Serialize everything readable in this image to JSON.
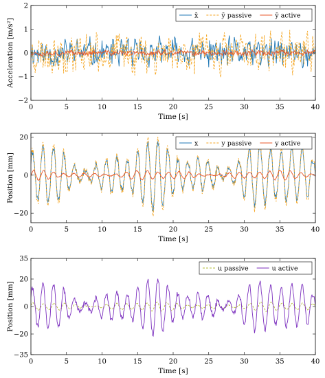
{
  "colors": {
    "x": "#1f77b4",
    "y_passive": "#f5a623",
    "y_active": "#e8572a",
    "u_passive": "#b5bd3a",
    "u_active": "#7b2fbe",
    "frame": "#000000",
    "grid": "none"
  },
  "chart_data": [
    {
      "type": "line",
      "xlabel": "Time [s]",
      "ylabel": "Acceleration [m/s²]",
      "xlim": [
        0,
        40
      ],
      "ylim": [
        -2,
        2
      ],
      "xticks": [
        "0",
        "5",
        "10",
        "15",
        "20",
        "25",
        "30",
        "35",
        "40"
      ],
      "yticks": [
        "−2",
        "−1",
        "0",
        "1",
        "2"
      ],
      "xtick_values": [
        0,
        5,
        10,
        15,
        20,
        25,
        30,
        35,
        40
      ],
      "ytick_values": [
        -2,
        -1,
        0,
        1,
        2
      ],
      "grid": false,
      "legend_position": "top-right",
      "series": [
        {
          "name": "x̄",
          "style": "solid",
          "color_key": "x",
          "signal": {
            "kind": "noise",
            "amp": 0.95,
            "sample_step": 0.1,
            "seed": 11
          }
        },
        {
          "name": "ȳ passive",
          "style": "dashed",
          "color_key": "y_passive",
          "signal": {
            "kind": "noise",
            "amp": 1.3,
            "sample_step": 0.1,
            "seed": 23
          }
        },
        {
          "name": "ȳ active",
          "style": "solid",
          "color_key": "y_active",
          "signal": {
            "kind": "noise",
            "amp": 0.18,
            "sample_step": 0.1,
            "seed": 37
          }
        }
      ]
    },
    {
      "type": "line",
      "xlabel": "Time [s]",
      "ylabel": "Position [mm]",
      "xlim": [
        0,
        40
      ],
      "ylim": [
        -25,
        22
      ],
      "xticks": [
        "0",
        "5",
        "10",
        "15",
        "20",
        "25",
        "30",
        "35",
        "40"
      ],
      "yticks": [
        "−20",
        "0",
        "20"
      ],
      "xtick_values": [
        0,
        5,
        10,
        15,
        20,
        25,
        30,
        35,
        40
      ],
      "ytick_values": [
        -20,
        0,
        20
      ],
      "grid": false,
      "legend_position": "top-right",
      "series": [
        {
          "name": "x",
          "style": "solid",
          "color_key": "x",
          "signal": {
            "kind": "oscillation",
            "amp": 15,
            "period": 1.45,
            "sample_step": 0.08,
            "seed": 5
          }
        },
        {
          "name": "y passive",
          "style": "dashed",
          "color_key": "y_passive",
          "signal": {
            "kind": "oscillation",
            "amp": 17,
            "period": 1.45,
            "sample_step": 0.08,
            "seed": 5
          }
        },
        {
          "name": "y active",
          "style": "solid",
          "color_key": "y_active",
          "signal": {
            "kind": "oscillation",
            "amp": 2.2,
            "period": 1.45,
            "sample_step": 0.08,
            "seed": 9
          }
        }
      ]
    },
    {
      "type": "line",
      "xlabel": "Time [s]",
      "ylabel": "Position [mm]",
      "xlim": [
        0,
        40
      ],
      "ylim": [
        -35,
        35
      ],
      "xticks": [
        "0",
        "5",
        "10",
        "15",
        "20",
        "25",
        "30",
        "35",
        "40"
      ],
      "yticks": [
        "−35",
        "−20",
        "0",
        "20",
        "35"
      ],
      "xtick_values": [
        0,
        5,
        10,
        15,
        20,
        25,
        30,
        35,
        40
      ],
      "ytick_values": [
        -35,
        -20,
        0,
        20,
        35
      ],
      "grid": false,
      "legend_position": "top-right",
      "series": [
        {
          "name": "u passive",
          "style": "dashed",
          "color_key": "u_passive",
          "signal": {
            "kind": "oscillation",
            "amp": 3,
            "period": 1.45,
            "sample_step": 0.08,
            "seed": 14
          }
        },
        {
          "name": "u active",
          "style": "solid",
          "color_key": "u_active",
          "signal": {
            "kind": "oscillation",
            "amp": 17,
            "period": 1.45,
            "sample_step": 0.08,
            "seed": 5
          }
        }
      ]
    }
  ]
}
